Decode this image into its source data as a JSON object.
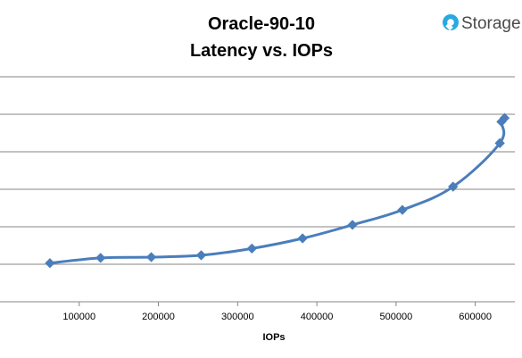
{
  "brand": {
    "name": "Storage",
    "icon": "storagereview-logo-icon",
    "color": "#29a9e1"
  },
  "chart_data": {
    "type": "line",
    "title": [
      "Oracle-90-10",
      "Latency vs. IOPs"
    ],
    "xlabel": "IOPs",
    "ylabel": "",
    "xlim": [
      0,
      650000
    ],
    "ylim": [
      0,
      6
    ],
    "x_ticks": [
      100000,
      200000,
      300000,
      400000,
      500000,
      600000
    ],
    "y_gridlines": [
      1,
      2,
      3,
      4,
      5,
      6
    ],
    "show_y_tick_labels": false,
    "grid": true,
    "legend": "none",
    "series_color": "#4a7ebb",
    "series": [
      {
        "x": [
          63000,
          127000,
          191000,
          254000,
          318000,
          382000,
          445000,
          508000,
          572000,
          631000,
          633000,
          637000
        ],
        "y": [
          1.03,
          1.17,
          1.19,
          1.24,
          1.42,
          1.69,
          2.05,
          2.45,
          3.07,
          4.23,
          4.8,
          4.9
        ]
      }
    ]
  }
}
